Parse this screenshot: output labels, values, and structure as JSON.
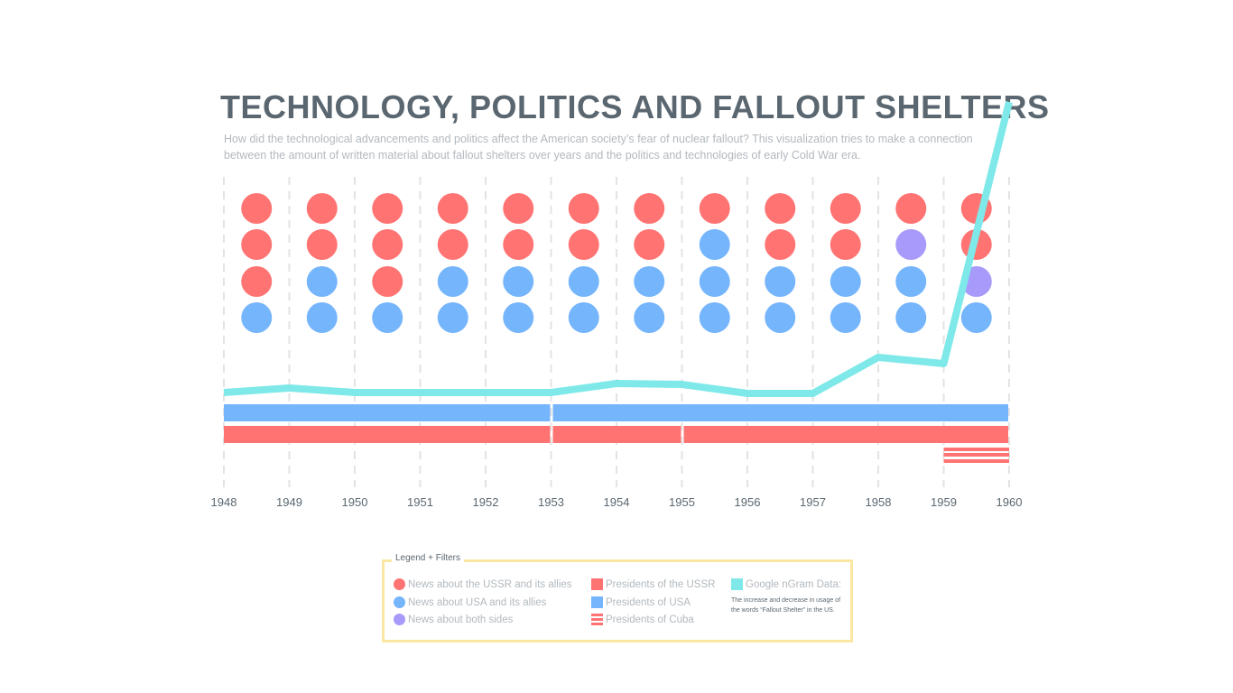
{
  "header": {
    "title": "TECHNOLOGY, POLITICS AND FALLOUT SHELTERS",
    "subtitle": "How did the technological advancements and politics affect the American society’s fear of nuclear fallout? This visualization tries to make a connection between the amount of written material about fallout shelters over years and the politics and technologies of early Cold War era."
  },
  "colors": {
    "ussr": "#ff7473",
    "usa": "#75b5fc",
    "both": "#a79afa",
    "ngram": "#7ee9e8",
    "gridline": "#e3e3e3",
    "text": "#5b6770",
    "muted": "#b3b9be",
    "legend_border": "#fbe7a1"
  },
  "chart_data": {
    "type": "dot-timeline",
    "years": [
      "1948",
      "1949",
      "1950",
      "1951",
      "1952",
      "1953",
      "1954",
      "1955",
      "1956",
      "1957",
      "1958",
      "1959",
      "1960"
    ],
    "xlim": [
      1948,
      1960
    ],
    "news_dots": [
      {
        "year": "1948",
        "dots": [
          "ussr",
          "ussr",
          "ussr",
          "usa"
        ]
      },
      {
        "year": "1949",
        "dots": [
          "ussr",
          "ussr",
          "usa",
          "usa"
        ]
      },
      {
        "year": "1950",
        "dots": [
          "ussr",
          "ussr",
          "ussr",
          "usa"
        ]
      },
      {
        "year": "1951",
        "dots": [
          "ussr",
          "ussr",
          "usa",
          "usa"
        ]
      },
      {
        "year": "1952",
        "dots": [
          "ussr",
          "ussr",
          "usa",
          "usa"
        ]
      },
      {
        "year": "1953",
        "dots": [
          "ussr",
          "ussr",
          "usa",
          "usa"
        ]
      },
      {
        "year": "1954",
        "dots": [
          "ussr",
          "ussr",
          "usa",
          "usa"
        ]
      },
      {
        "year": "1955",
        "dots": [
          "ussr",
          "usa",
          "usa",
          "usa"
        ]
      },
      {
        "year": "1956",
        "dots": [
          "ussr",
          "ussr",
          "usa",
          "usa"
        ]
      },
      {
        "year": "1957",
        "dots": [
          "ussr",
          "ussr",
          "usa",
          "usa"
        ]
      },
      {
        "year": "1958",
        "dots": [
          "ussr",
          "both",
          "usa",
          "usa"
        ]
      },
      {
        "year": "1959",
        "dots": [
          "ussr",
          "ussr",
          "both",
          "usa"
        ]
      }
    ],
    "ngram": {
      "x": [
        1948,
        1949,
        1950,
        1951,
        1952,
        1953,
        1954,
        1955,
        1956,
        1957,
        1958,
        1959,
        1960
      ],
      "y": [
        8,
        13,
        8,
        8,
        8,
        8,
        18,
        17,
        7,
        7,
        47,
        40,
        330
      ],
      "ylim": [
        0,
        330
      ]
    },
    "presidents": {
      "usa": [
        [
          1948,
          1953
        ],
        [
          1953,
          1960
        ]
      ],
      "ussr": [
        [
          1948,
          1953
        ],
        [
          1953,
          1955
        ],
        [
          1955,
          1960
        ]
      ],
      "cuba": [
        [
          1959,
          1960
        ]
      ]
    }
  },
  "legend": {
    "title": "Legend + Filters",
    "items": {
      "ussr_news": "News about the USSR and its allies",
      "usa_news": "News about USA and its allies",
      "both_news": "News about both sides",
      "ussr_presidents": "Presidents of the USSR",
      "usa_presidents": "Presidents of USA",
      "cuba_presidents": "Presidents of Cuba",
      "ngram": "Google nGram Data:",
      "ngram_note": "The increase and decrease in usage of the words “Fallout Shelter” in the US."
    }
  }
}
